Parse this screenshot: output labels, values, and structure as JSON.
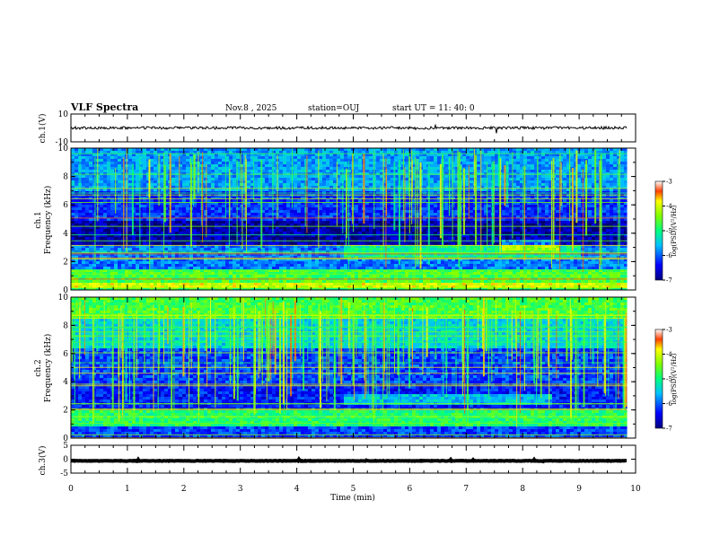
{
  "header": {
    "title": "VLF Spectra",
    "date": "Nov.8 , 2025",
    "station": "station=OUJ",
    "start_ut": "start UT = 11: 40: 0"
  },
  "chart_data": [
    {
      "type": "line",
      "id": "ch1-waveform",
      "ylabel": "ch.1(V)",
      "ylim": [
        -10,
        10
      ],
      "yticks": [
        "10",
        "-10"
      ],
      "trace_level": 0,
      "xlim": [
        0,
        10
      ]
    },
    {
      "type": "heatmap",
      "id": "ch1-spectrogram",
      "ylabel": "ch.1\nFrequency (kHz)",
      "ylabel_lines": [
        "ch.1",
        "Frequency (kHz)"
      ],
      "ylim": [
        0,
        10
      ],
      "yticks": [
        "0",
        "2",
        "4",
        "6",
        "8",
        "10"
      ],
      "xlim": [
        0,
        10
      ],
      "data_end_min": 9.85,
      "colorbar": {
        "label": "log(PSD)(V²/Hz)",
        "ticks": [
          "-3",
          "-4",
          "-5",
          "-6",
          "-7"
        ],
        "range": [
          -7,
          -3
        ]
      },
      "features": [
        {
          "name": "emission band 2.3-3 kHz",
          "t0": 4.8,
          "t1": 9.0,
          "f0": 2.3,
          "f1": 3.2
        },
        {
          "name": "emission enhancement ~3 kHz",
          "t0": 7.6,
          "t1": 8.6,
          "f0": 2.6,
          "f1": 3.6
        },
        {
          "name": "low band",
          "t0": 0,
          "t1": 9.85,
          "f0": 0.3,
          "f1": 1.5
        }
      ]
    },
    {
      "type": "heatmap",
      "id": "ch2-spectrogram",
      "ylabel_lines": [
        "ch.2",
        "Frequency (kHz)"
      ],
      "ylim": [
        0,
        10
      ],
      "yticks": [
        "0",
        "2",
        "4",
        "6",
        "8",
        "10"
      ],
      "xlim": [
        0,
        10
      ],
      "data_end_min": 9.85,
      "colorbar": {
        "label": "log(PSD)(V²/Hz)",
        "ticks": [
          "-3",
          "-4",
          "-5",
          "-6",
          "-7"
        ],
        "range": [
          -7,
          -3
        ]
      },
      "features": [
        {
          "name": "emission band ~3 kHz",
          "t0": 4.8,
          "t1": 8.5,
          "f0": 2.4,
          "f1": 3.3
        },
        {
          "name": "low band 1-2 kHz",
          "t0": 0,
          "t1": 9.85,
          "f0": 1.0,
          "f1": 2.0
        }
      ]
    },
    {
      "type": "line",
      "id": "ch3-waveform",
      "ylabel": "ch.3(V)",
      "ylim": [
        -5,
        5
      ],
      "yticks": [
        "5",
        "0",
        "-5"
      ],
      "trace_level": -0.6,
      "xlim": [
        0,
        10
      ]
    }
  ],
  "xaxis": {
    "label": "Time (min)",
    "ticks": [
      "0",
      "1",
      "2",
      "3",
      "4",
      "5",
      "6",
      "7",
      "8",
      "9",
      "10"
    ]
  }
}
